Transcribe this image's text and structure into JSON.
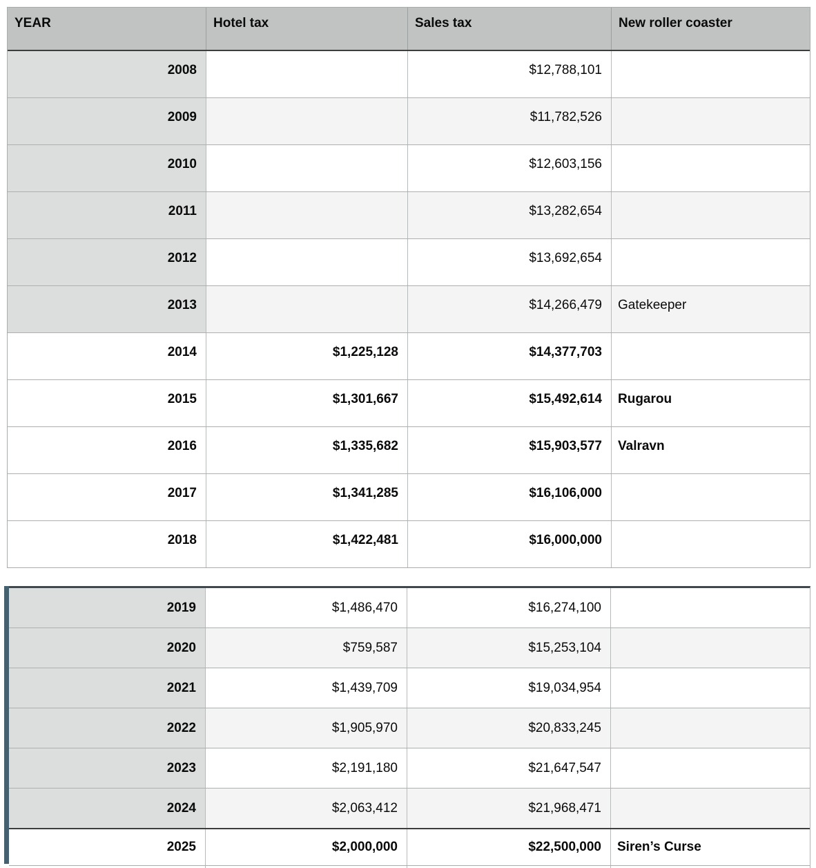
{
  "columns": [
    {
      "label": "YEAR"
    },
    {
      "label": "Hotel tax"
    },
    {
      "label": "Sales tax"
    },
    {
      "label": "New roller coaster"
    }
  ],
  "tables": [
    {
      "id": "upper",
      "rows": [
        {
          "year": "2008",
          "hotel_tax": "",
          "sales_tax": "$12,788,101",
          "coaster": "",
          "emphasis": false
        },
        {
          "year": "2009",
          "hotel_tax": "",
          "sales_tax": "$11,782,526",
          "coaster": "",
          "emphasis": false
        },
        {
          "year": "2010",
          "hotel_tax": "",
          "sales_tax": "$12,603,156",
          "coaster": "",
          "emphasis": false
        },
        {
          "year": "2011",
          "hotel_tax": "",
          "sales_tax": "$13,282,654",
          "coaster": "",
          "emphasis": false
        },
        {
          "year": "2012",
          "hotel_tax": "",
          "sales_tax": "$13,692,654",
          "coaster": "",
          "emphasis": false
        },
        {
          "year": "2013",
          "hotel_tax": "",
          "sales_tax": "$14,266,479",
          "coaster": "Gatekeeper",
          "emphasis": false
        },
        {
          "year": "2014",
          "hotel_tax": "$1,225,128",
          "sales_tax": "$14,377,703",
          "coaster": "",
          "emphasis": true
        },
        {
          "year": "2015",
          "hotel_tax": "$1,301,667",
          "sales_tax": "$15,492,614",
          "coaster": "Rugarou",
          "emphasis": true
        },
        {
          "year": "2016",
          "hotel_tax": "$1,335,682",
          "sales_tax": "$15,903,577",
          "coaster": "Valravn",
          "emphasis": true
        },
        {
          "year": "2017",
          "hotel_tax": "$1,341,285",
          "sales_tax": "$16,106,000",
          "coaster": "",
          "emphasis": true
        },
        {
          "year": "2018",
          "hotel_tax": "$1,422,481",
          "sales_tax": "$16,000,000",
          "coaster": "",
          "emphasis": true
        }
      ]
    },
    {
      "id": "lower",
      "rows": [
        {
          "year": "2019",
          "hotel_tax": "$1,486,470",
          "sales_tax": "$16,274,100",
          "coaster": "",
          "emphasis": false
        },
        {
          "year": "2020",
          "hotel_tax": "$759,587",
          "sales_tax": "$15,253,104",
          "coaster": "",
          "emphasis": false
        },
        {
          "year": "2021",
          "hotel_tax": "$1,439,709",
          "sales_tax": "$19,034,954",
          "coaster": "",
          "emphasis": false
        },
        {
          "year": "2022",
          "hotel_tax": "$1,905,970",
          "sales_tax": "$20,833,245",
          "coaster": "",
          "emphasis": false
        },
        {
          "year": "2023",
          "hotel_tax": "$2,191,180",
          "sales_tax": "$21,647,547",
          "coaster": "",
          "emphasis": false
        },
        {
          "year": "2024",
          "hotel_tax": "$2,063,412",
          "sales_tax": "$21,968,471",
          "coaster": "",
          "emphasis": false
        },
        {
          "year": "2025",
          "hotel_tax": "$2,000,000",
          "sales_tax": "$22,500,000",
          "coaster": "Siren’s Curse",
          "emphasis": true
        }
      ]
    }
  ],
  "colors": {
    "header_bg": "#c1c3c3",
    "year_cell_bg": "#dcdddd",
    "shaded_row_bg": "#f4f4f5",
    "grid_line": "#b7baba",
    "dark_rule": "#3c3e3e",
    "selection_edge_bar": "#45616f"
  }
}
